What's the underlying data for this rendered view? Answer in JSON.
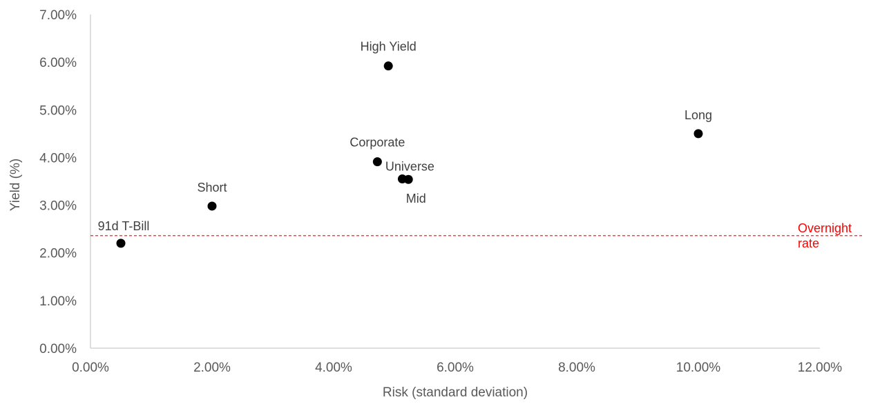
{
  "chart_data": {
    "type": "scatter",
    "title": "",
    "xlabel": "Risk (standard deviation)",
    "ylabel": "Yield (%)",
    "xlim": [
      0,
      12
    ],
    "ylim": [
      0,
      7
    ],
    "x_ticks": [
      "0.00%",
      "2.00%",
      "4.00%",
      "6.00%",
      "8.00%",
      "10.00%",
      "12.00%"
    ],
    "y_ticks": [
      "0.00%",
      "1.00%",
      "2.00%",
      "3.00%",
      "4.00%",
      "5.00%",
      "6.00%",
      "7.00%"
    ],
    "grid": false,
    "marker_color": "#000000",
    "points": [
      {
        "label": "91d T-Bill",
        "x": 0.5,
        "y": 2.2
      },
      {
        "label": "Short",
        "x": 2.0,
        "y": 2.98
      },
      {
        "label": "Corporate",
        "x": 4.72,
        "y": 3.91
      },
      {
        "label": "Universe",
        "x": 5.13,
        "y": 3.55
      },
      {
        "label": "Mid",
        "x": 5.23,
        "y": 3.54
      },
      {
        "label": "High Yield",
        "x": 4.9,
        "y": 5.92
      },
      {
        "label": "Long",
        "x": 10.0,
        "y": 4.5
      }
    ],
    "reference_line": {
      "label_lines": [
        "Overnight",
        "rate"
      ],
      "y": 2.36,
      "color": "#ff0000",
      "style": "dashed"
    }
  }
}
